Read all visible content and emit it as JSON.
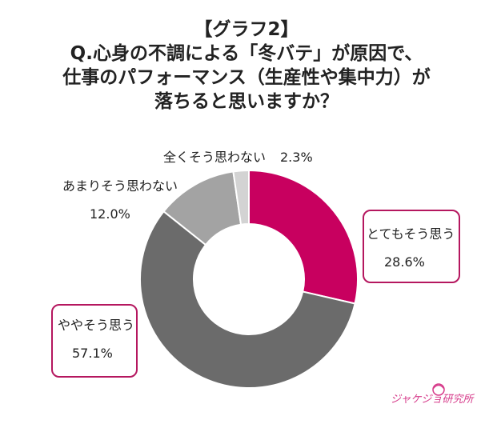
{
  "title": {
    "line1": "【グラフ2】",
    "line2": "Q.心身の不調による「冬バテ」が原因で、",
    "line3": "仕事のパフォーマンス（生産性や集中力）が",
    "line4": "落ちると思いますか？"
  },
  "chart_data": {
    "type": "pie",
    "donut": true,
    "slices": [
      {
        "label": "とてもそう思う",
        "value": 28.6,
        "value_label": "28.6%",
        "color": "#c8005f"
      },
      {
        "label": "ややそう思う",
        "value": 57.1,
        "value_label": "57.1%",
        "color": "#6b6b6b"
      },
      {
        "label": "あまりそう思わない",
        "value": 12.0,
        "value_label": "12.0%",
        "color": "#a3a3a3"
      },
      {
        "label": "全くそう思わない",
        "value": 2.3,
        "value_label": "2.3%",
        "color": "#d3d3d3"
      }
    ]
  },
  "logo": {
    "text": "ジャケジョ研究所",
    "color": "#d63a8a"
  }
}
